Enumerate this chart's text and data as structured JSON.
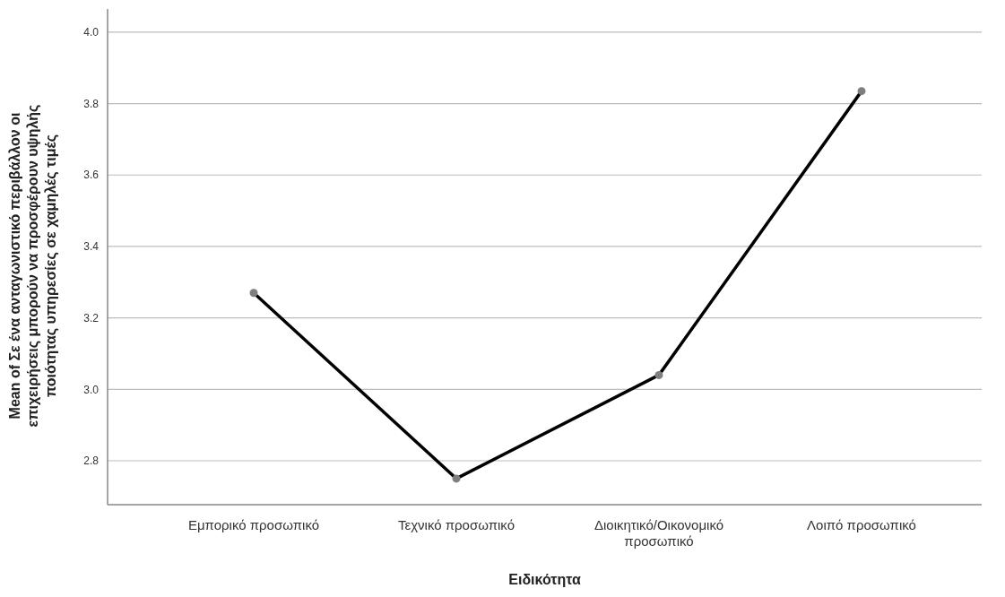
{
  "chart_data": {
    "type": "line",
    "xlabel": "Ειδικότητα",
    "ylabel": "Mean of Σε ένα ανταγωνιστικό περιβάλλον οι επιχειρήσεις μπορούν να προσφέρουν υψηλής ποιότητας υπηρεσίες σε χαμηλές τιμές",
    "categories": [
      "Εμπορικό προσωπικό",
      "Τεχνικό προσωπικό",
      "Διοικητικό/Οικονομικό προσωπικό",
      "Λοιπό προσωπικό"
    ],
    "series": [
      {
        "color": "#000000",
        "values": [
          3.27,
          2.75,
          3.04,
          3.835
        ]
      }
    ],
    "ylim": [
      2.677,
      4.065
    ],
    "yticks": [
      {
        "value": 2.8,
        "label": "2.8"
      },
      {
        "value": 3.0,
        "label": "3.0"
      },
      {
        "value": 3.2,
        "label": "3.2"
      },
      {
        "value": 3.4,
        "label": "3.4"
      },
      {
        "value": 3.6,
        "label": "3.6"
      },
      {
        "value": 3.8,
        "label": "3.8"
      },
      {
        "value": 4.0,
        "label": "4.0"
      }
    ],
    "grid": "y",
    "marker": "circle"
  }
}
